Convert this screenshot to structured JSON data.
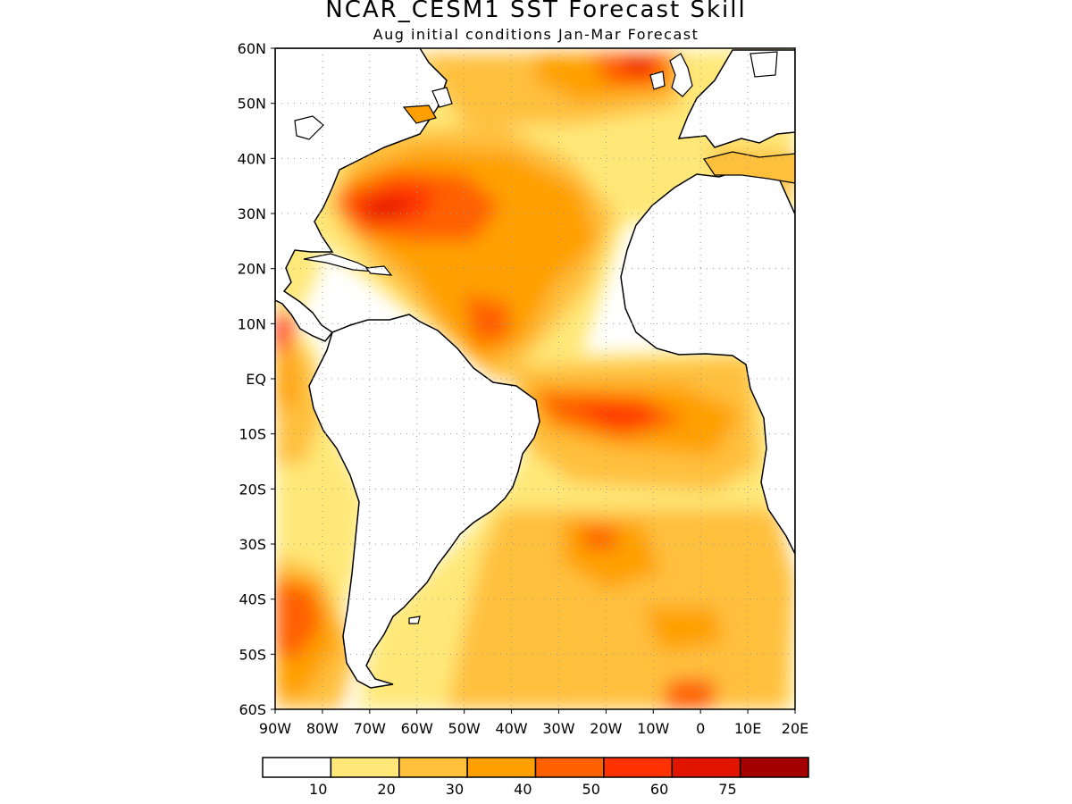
{
  "title": "NCAR_CESM1 SST Forecast Skill",
  "subtitle": "Aug initial conditions  Jan-Mar Forecast",
  "lat_labels": [
    "60N",
    "50N",
    "40N",
    "30N",
    "20N",
    "10N",
    "EQ",
    "10S",
    "20S",
    "30S",
    "40S",
    "50S",
    "60S"
  ],
  "lon_labels": [
    "90W",
    "80W",
    "70W",
    "60W",
    "50W",
    "40W",
    "30W",
    "20W",
    "10W",
    "0",
    "10E",
    "20E"
  ],
  "colorbar": {
    "colors": [
      "#ffffff",
      "#ffe878",
      "#ffc03c",
      "#ffa000",
      "#ff6000",
      "#ff3200",
      "#e11400",
      "#a50000"
    ],
    "labels": [
      "10",
      "20",
      "30",
      "40",
      "50",
      "60",
      "75"
    ]
  },
  "colors": {
    "land": "#ffffff",
    "coast": "#000000",
    "grid": "#9a9a9a"
  }
}
